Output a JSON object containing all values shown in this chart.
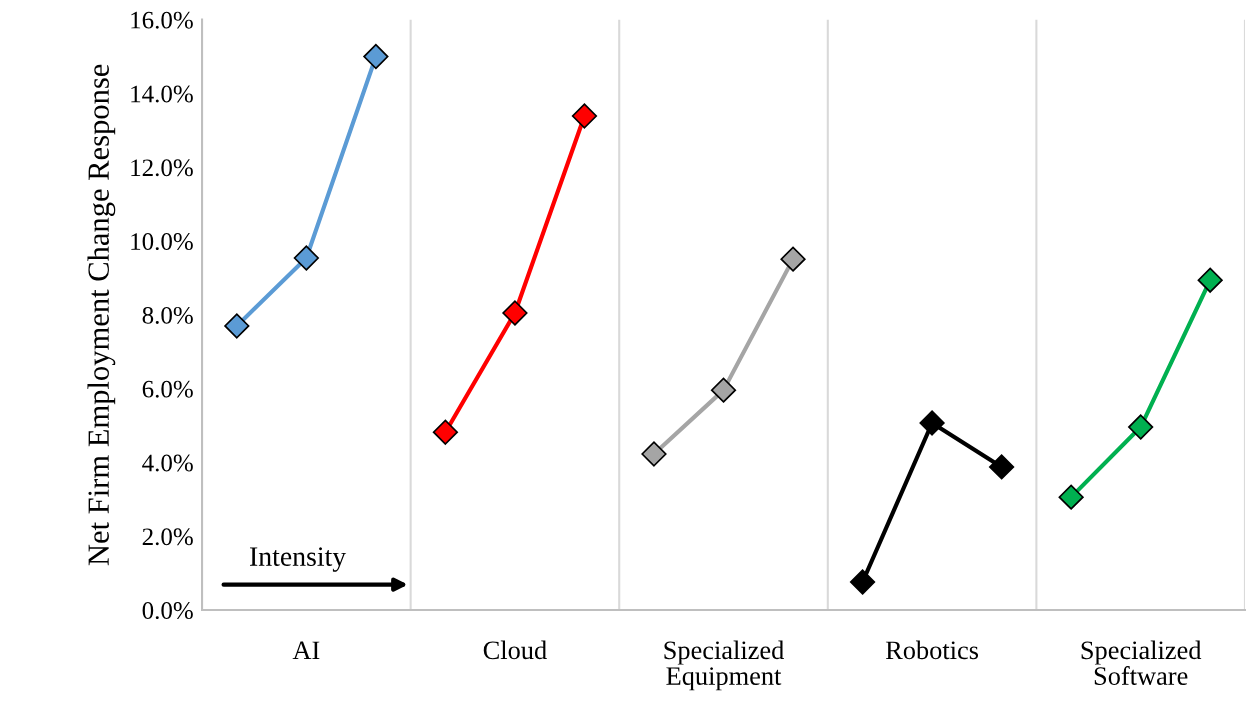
{
  "chart_data": {
    "type": "line",
    "ylabel": "Net Firm Employment Change Response",
    "categories": [
      null,
      "AI",
      null,
      null,
      "Cloud",
      null,
      null,
      "Specialized Equipment",
      null,
      null,
      "Robotics",
      null,
      null,
      "Specialized Software",
      null
    ],
    "series": [
      {
        "color": "#5b9bd5",
        "values": [
          7.7,
          9.54,
          15.0,
          null,
          null,
          null,
          null,
          null,
          null,
          null,
          null,
          null,
          null,
          null,
          null
        ]
      },
      {
        "color": "#ff0000",
        "values": [
          null,
          null,
          null,
          4.82,
          8.05,
          13.39,
          null,
          null,
          null,
          null,
          null,
          null,
          null,
          null,
          null
        ]
      },
      {
        "color": "#a5a5a5",
        "values": [
          null,
          null,
          null,
          null,
          null,
          null,
          4.23,
          5.96,
          9.51,
          null,
          null,
          null,
          null,
          null,
          null
        ]
      },
      {
        "color": "#000000",
        "values": [
          null,
          null,
          null,
          null,
          null,
          null,
          null,
          null,
          null,
          0.76,
          5.07,
          3.88,
          null,
          null,
          null
        ]
      },
      {
        "color": "#00b050",
        "values": [
          null,
          null,
          null,
          null,
          null,
          null,
          null,
          null,
          null,
          null,
          null,
          null,
          3.06,
          4.96,
          8.94
        ]
      }
    ],
    "ylim": [
      0,
      16
    ],
    "yticks": [
      {
        "value": 0,
        "label": "0.0%"
      },
      {
        "value": 2,
        "label": "2.0%"
      },
      {
        "value": 4,
        "label": "4.0%"
      },
      {
        "value": 6,
        "label": "6.0%"
      },
      {
        "value": 8,
        "label": "8.0%"
      },
      {
        "value": 10,
        "label": "10.0%"
      },
      {
        "value": 12,
        "label": "12.0%"
      },
      {
        "value": 14,
        "label": "14.0%"
      },
      {
        "value": 16,
        "label": "16.0%"
      }
    ],
    "grid": "x",
    "marker": "diamond",
    "line_style": "solid",
    "legend": false,
    "annotations": [
      "Intensity"
    ]
  }
}
